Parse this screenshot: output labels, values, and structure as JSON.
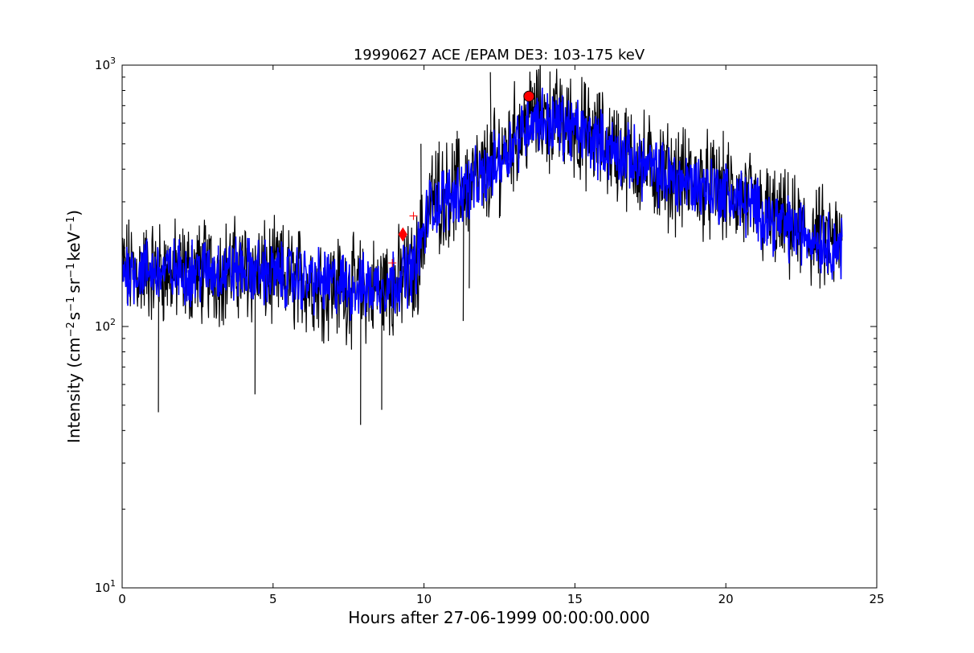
{
  "chart_data": {
    "type": "line",
    "title": "19990627 ACE /EPAM DE3: 103-175 keV",
    "xlabel": "Hours after 27-06-1999 00:00:00.000",
    "ylabel": {
      "prefix": "Intensity (cm",
      "exp1": "−2",
      "part2": "s",
      "exp2": "−1",
      "part3": "sr",
      "exp3": "−1",
      "part4": "keV",
      "exp4": "−1",
      "suffix": ")"
    },
    "xlim": [
      0,
      25
    ],
    "ylim": [
      10,
      1000
    ],
    "yscale": "log",
    "x_ticks": [
      {
        "value": 0,
        "label": "0"
      },
      {
        "value": 5,
        "label": "5"
      },
      {
        "value": 10,
        "label": "10"
      },
      {
        "value": 15,
        "label": "15"
      },
      {
        "value": 20,
        "label": "20"
      },
      {
        "value": 25,
        "label": "25"
      }
    ],
    "y_ticks": [
      {
        "value": 10,
        "base": "10",
        "exp": "1"
      },
      {
        "value": 100,
        "base": "10",
        "exp": "2"
      },
      {
        "value": 1000,
        "base": "10",
        "exp": "3"
      }
    ],
    "grid": false,
    "series": [
      {
        "color": "#000000",
        "profile": [
          [
            0,
            165
          ],
          [
            2,
            160
          ],
          [
            4,
            165
          ],
          [
            6,
            150
          ],
          [
            8,
            135
          ],
          [
            9,
            145
          ],
          [
            9.7,
            160
          ],
          [
            10.2,
            300
          ],
          [
            11,
            330
          ],
          [
            12,
            380
          ],
          [
            12.8,
            500
          ],
          [
            13.6,
            640
          ],
          [
            14.8,
            590
          ],
          [
            16,
            500
          ],
          [
            18,
            380
          ],
          [
            20,
            330
          ],
          [
            22,
            240
          ],
          [
            23.85,
            200
          ]
        ],
        "samples": [
          [
            1.2,
            47
          ],
          [
            4.4,
            55
          ],
          [
            7.9,
            42
          ],
          [
            8.6,
            48
          ],
          [
            11.1,
            560
          ],
          [
            11.5,
            140
          ],
          [
            12.2,
            940
          ],
          [
            12.5,
            260
          ],
          [
            9.9,
            500
          ],
          [
            11.3,
            105
          ],
          [
            10.5,
            510
          ]
        ]
      },
      {
        "color": "#0000ff",
        "profile": [
          [
            0,
            165
          ],
          [
            2,
            162
          ],
          [
            4,
            165
          ],
          [
            6,
            152
          ],
          [
            8,
            140
          ],
          [
            9,
            148
          ],
          [
            9.7,
            170
          ],
          [
            10.2,
            290
          ],
          [
            11,
            320
          ],
          [
            12,
            370
          ],
          [
            12.8,
            480
          ],
          [
            13.6,
            630
          ],
          [
            14.8,
            580
          ],
          [
            16,
            490
          ],
          [
            18,
            375
          ],
          [
            20,
            325
          ],
          [
            22,
            240
          ],
          [
            23.85,
            200
          ]
        ]
      }
    ],
    "markers": [
      {
        "shape": "circle",
        "x": 13.48,
        "y": 760,
        "color": "#ff0000"
      },
      {
        "shape": "diamond",
        "x": 9.3,
        "y": 225,
        "color": "#ff0000"
      },
      {
        "shape": "plus",
        "x": 8.95,
        "y": 175,
        "color": "#ff0000"
      },
      {
        "shape": "plus",
        "x": 9.65,
        "y": 265,
        "color": "#ff0000"
      }
    ]
  }
}
